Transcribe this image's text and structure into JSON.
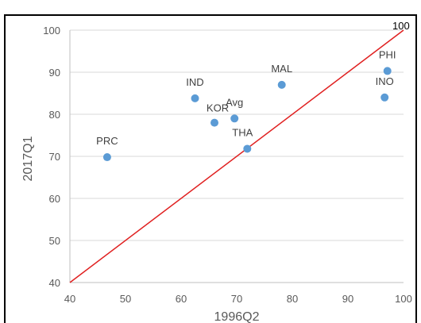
{
  "chart_data": {
    "type": "scatter",
    "title": "",
    "xlabel": "1996Q2",
    "ylabel": "2017Q1",
    "xlim": [
      40,
      100
    ],
    "ylim": [
      40,
      100
    ],
    "xticks": [
      "40",
      "50",
      "60",
      "70",
      "80",
      "90",
      "100"
    ],
    "yticks": [
      "40",
      "50",
      "60",
      "70",
      "80",
      "90",
      "100"
    ],
    "grid": "horizontal",
    "points": [
      {
        "label": "PRC",
        "x": 46.7,
        "y": 69.8
      },
      {
        "label": "IND",
        "x": 62.5,
        "y": 83.8
      },
      {
        "label": "KOR",
        "x": 66.0,
        "y": 78.0
      },
      {
        "label": "Avg",
        "x": 69.6,
        "y": 79.0
      },
      {
        "label": "THA",
        "x": 71.9,
        "y": 71.8
      },
      {
        "label": "MAL",
        "x": 78.1,
        "y": 87.0
      },
      {
        "label": "PHI",
        "x": 97.1,
        "y": 90.3
      },
      {
        "label": "INO",
        "x": 96.6,
        "y": 84.0
      }
    ],
    "reference_line": {
      "label": "100",
      "from": [
        40,
        40
      ],
      "to": [
        100,
        100
      ],
      "color": "#e02020"
    },
    "point_color": "#5b9bd5"
  }
}
